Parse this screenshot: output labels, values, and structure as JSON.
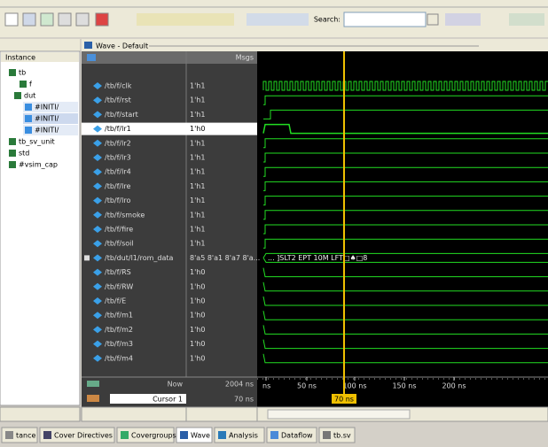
{
  "toolbar": {
    "search_label": "Search:"
  },
  "instance_panel": {
    "header": "Instance",
    "tree": [
      "tb",
      "f",
      "dut",
      "#INITI/",
      "#INITI/",
      "#INITI/",
      "tb_sv_unit",
      "std",
      "#vsim_cap"
    ]
  },
  "wave_window": {
    "title": "Wave - Default",
    "msgs_header": "Msgs",
    "signals": [
      {
        "name": "/tb/f/clk",
        "value": "1'h1"
      },
      {
        "name": "/tb/f/rst",
        "value": "1'h1"
      },
      {
        "name": "/tb/f/start",
        "value": "1'h1"
      },
      {
        "name": "/tb/f/lr1",
        "value": "1'h0"
      },
      {
        "name": "/tb/f/lr2",
        "value": "1'h1"
      },
      {
        "name": "/tb/f/lr3",
        "value": "1'h1"
      },
      {
        "name": "/tb/f/lr4",
        "value": "1'h1"
      },
      {
        "name": "/tb/f/lre",
        "value": "1'h1"
      },
      {
        "name": "/tb/f/lro",
        "value": "1'h1"
      },
      {
        "name": "/tb/f/smoke",
        "value": "1'h1"
      },
      {
        "name": "/tb/f/fire",
        "value": "1'h1"
      },
      {
        "name": "/tb/f/soil",
        "value": "1'h1"
      },
      {
        "name": "/tb/dut/l1/rom_data",
        "value": "8'a5 8'a1 8'a7 8'a..."
      },
      {
        "name": "/tb/f/RS",
        "value": "1'h0"
      },
      {
        "name": "/tb/f/RW",
        "value": "1'h0"
      },
      {
        "name": "/tb/f/E",
        "value": "1'h0"
      },
      {
        "name": "/tb/f/m1",
        "value": "1'h0"
      },
      {
        "name": "/tb/f/m2",
        "value": "1'h0"
      },
      {
        "name": "/tb/f/m3",
        "value": "1'h0"
      },
      {
        "name": "/tb/f/m4",
        "value": "1'h0"
      }
    ],
    "rom_data_wave": "...  ]SLT2  EPT  10M  LFT□♠□8",
    "now_label": "Now",
    "now_value": "2004 ns",
    "cursor_label": "Cursor 1",
    "cursor_value": "70 ns",
    "cursor_marker": "70 ns",
    "time_axis": [
      "ns",
      "50 ns",
      "100 ns",
      "150 ns",
      "200 ns"
    ]
  },
  "tabs": [
    "tance",
    "Cover Directives",
    "Covergroups",
    "Wave",
    "Analysis",
    "Dataflow",
    "tb.sv"
  ]
}
